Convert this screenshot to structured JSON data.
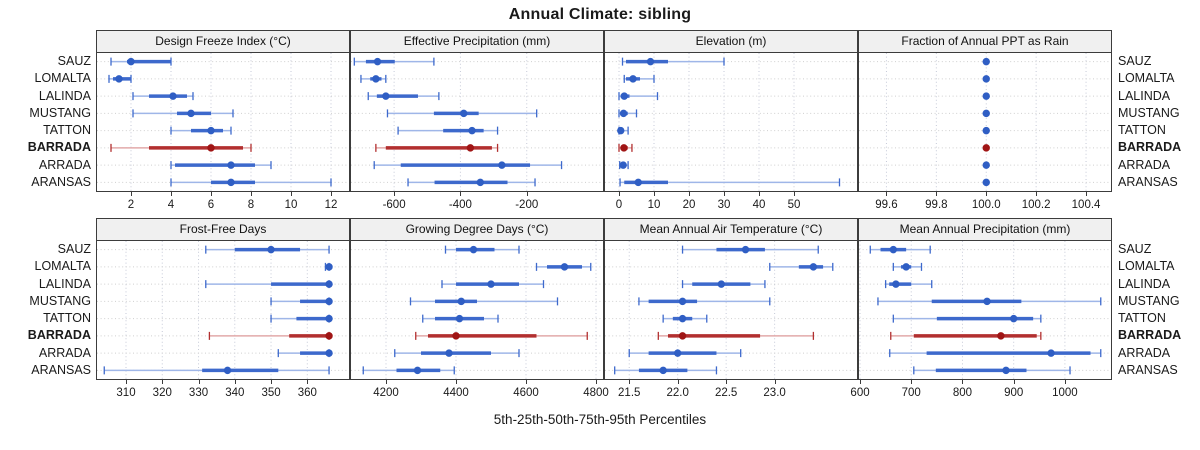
{
  "title": "Annual Climate: sibling",
  "caption": "5th-25th-50th-75th-95th Percentiles",
  "sites": [
    "SAUZ",
    "LOMALTA",
    "LALINDA",
    "MUSTANG",
    "TATTON",
    "BARRADA",
    "ARRADA",
    "ARANSAS"
  ],
  "highlight_site": "BARRADA",
  "colors": {
    "dot_blue": "#2f5ec4",
    "mid_blue": "#3d69cc",
    "range_blue": "#9fb6e8",
    "dot_red": "#a01515",
    "mid_red": "#b22f2f",
    "range_red": "#e2aaaa",
    "grid_vertical": "#c6cad8",
    "grid_horizontal": "#cfcfcf",
    "panel_border": "#3c3c3c",
    "header_bg": "#f0f0f0"
  },
  "chart_data": {
    "type": "dotplot-percentile-intervals",
    "percentiles": [
      5,
      25,
      50,
      75,
      95
    ],
    "legend_note": "dot = median, thick bar = 25th-75th, thin bar with caps = 5th-95th; BARRADA highlighted in red",
    "panels": [
      {
        "title": "Design Freeze Index (°C)",
        "row": 0,
        "col": 0,
        "xlim": [
          0.3,
          12.9
        ],
        "ticks": [
          2,
          4,
          6,
          8,
          10,
          12
        ],
        "tick_labels": [
          "2",
          "4",
          "6",
          "8",
          "10",
          "12"
        ],
        "values": [
          [
            1,
            1.8,
            2,
            4,
            4
          ],
          [
            0.9,
            1.1,
            1.4,
            2,
            2
          ],
          [
            2.1,
            2.9,
            4.1,
            4.8,
            5.1
          ],
          [
            2.1,
            4.3,
            5,
            6,
            7.1
          ],
          [
            4,
            5,
            6,
            6.6,
            7
          ],
          [
            1,
            2.9,
            6,
            7.6,
            8
          ],
          [
            4,
            4.2,
            7,
            8.2,
            9
          ],
          [
            4,
            6,
            7,
            8.2,
            12
          ]
        ]
      },
      {
        "title": "Effective Precipitation (mm)",
        "row": 0,
        "col": 1,
        "xlim": [
          -730,
          30
        ],
        "ticks": [
          -600,
          -400,
          -200
        ],
        "tick_labels": [
          "-600",
          "-400",
          "-200"
        ],
        "values": [
          [
            -720,
            -685,
            -650,
            -598,
            -480
          ],
          [
            -700,
            -672,
            -655,
            -638,
            -625
          ],
          [
            -678,
            -652,
            -625,
            -528,
            -465
          ],
          [
            -620,
            -480,
            -390,
            -345,
            -170
          ],
          [
            -588,
            -452,
            -365,
            -330,
            -288
          ],
          [
            -655,
            -625,
            -370,
            -305,
            -288
          ],
          [
            -660,
            -580,
            -275,
            -190,
            -95
          ],
          [
            -558,
            -478,
            -340,
            -258,
            -175
          ]
        ]
      },
      {
        "title": "Elevation (m)",
        "row": 0,
        "col": 2,
        "xlim": [
          -4,
          68
        ],
        "ticks": [
          0,
          10,
          20,
          30,
          40,
          50
        ],
        "tick_labels": [
          "0",
          "10",
          "20",
          "30",
          "40",
          "50"
        ],
        "values": [
          [
            1,
            2,
            9,
            14,
            30
          ],
          [
            1.5,
            2,
            4,
            6,
            10
          ],
          [
            0,
            0.5,
            1.5,
            3,
            11
          ],
          [
            0,
            0.5,
            1.3,
            2.5,
            5
          ],
          [
            0,
            0.1,
            0.5,
            1.3,
            2.6
          ],
          [
            0,
            0.6,
            1.4,
            2.5,
            3.7
          ],
          [
            0.2,
            0.7,
            1.2,
            1.8,
            2.6
          ],
          [
            0.3,
            1.5,
            5.5,
            14,
            63
          ]
        ]
      },
      {
        "title": "Fraction of Annual PPT as Rain",
        "row": 0,
        "col": 3,
        "xlim": [
          99.49,
          100.5
        ],
        "ticks": [
          99.6,
          99.8,
          100.0,
          100.2,
          100.4
        ],
        "tick_labels": [
          "99.6",
          "99.8",
          "100.0",
          "100.2",
          "100.4"
        ],
        "values": [
          [
            100,
            100,
            100,
            100,
            100
          ],
          [
            100,
            100,
            100,
            100,
            100
          ],
          [
            100,
            100,
            100,
            100,
            100
          ],
          [
            100,
            100,
            100,
            100,
            100
          ],
          [
            100,
            100,
            100,
            100,
            100
          ],
          [
            100,
            100,
            100,
            100,
            100
          ],
          [
            100,
            100,
            100,
            100,
            100
          ],
          [
            100,
            100,
            100,
            100,
            100
          ]
        ]
      },
      {
        "title": "Frost-Free Days",
        "row": 1,
        "col": 0,
        "xlim": [
          302,
          371.5
        ],
        "ticks": [
          310,
          320,
          330,
          340,
          350,
          360
        ],
        "tick_labels": [
          "310",
          "320",
          "330",
          "340",
          "350",
          "360"
        ],
        "values": [
          [
            332,
            340,
            350,
            358,
            366
          ],
          [
            365,
            366,
            366,
            366,
            366
          ],
          [
            332,
            350,
            366,
            366,
            366
          ],
          [
            350,
            358,
            366,
            366,
            366
          ],
          [
            350,
            357,
            366,
            366,
            366
          ],
          [
            333,
            355,
            366,
            366,
            366
          ],
          [
            352,
            358,
            366,
            366,
            366
          ],
          [
            304,
            331,
            338,
            352,
            366
          ]
        ]
      },
      {
        "title": "Growing Degree Days (°C)",
        "row": 1,
        "col": 1,
        "xlim": [
          4100,
          4820
        ],
        "ticks": [
          4200,
          4400,
          4600,
          4800
        ],
        "tick_labels": [
          "4200",
          "4400",
          "4600",
          "4800"
        ],
        "values": [
          [
            4370,
            4400,
            4450,
            4510,
            4580
          ],
          [
            4630,
            4660,
            4710,
            4760,
            4785
          ],
          [
            4360,
            4400,
            4500,
            4580,
            4650
          ],
          [
            4270,
            4340,
            4415,
            4460,
            4690
          ],
          [
            4305,
            4340,
            4410,
            4480,
            4520
          ],
          [
            4285,
            4320,
            4400,
            4630,
            4775
          ],
          [
            4225,
            4300,
            4380,
            4500,
            4580
          ],
          [
            4135,
            4230,
            4290,
            4355,
            4395
          ]
        ]
      },
      {
        "title": "Mean Annual Air Temperature (°C)",
        "row": 1,
        "col": 2,
        "xlim": [
          21.25,
          23.85
        ],
        "ticks": [
          21.5,
          22.0,
          22.5,
          23.0
        ],
        "tick_labels": [
          "21.5",
          "22.0",
          "22.5",
          "23.0"
        ],
        "values": [
          [
            22.05,
            22.4,
            22.7,
            22.9,
            23.45
          ],
          [
            22.95,
            23.25,
            23.4,
            23.5,
            23.6
          ],
          [
            22.05,
            22.15,
            22.45,
            22.75,
            22.9
          ],
          [
            21.6,
            21.7,
            22.05,
            22.2,
            22.95
          ],
          [
            21.85,
            21.95,
            22.05,
            22.15,
            22.3
          ],
          [
            21.8,
            21.9,
            22.05,
            22.85,
            23.4
          ],
          [
            21.5,
            21.7,
            22.0,
            22.4,
            22.65
          ],
          [
            21.35,
            21.6,
            21.85,
            22.1,
            22.4
          ]
        ]
      },
      {
        "title": "Mean Annual Precipitation (mm)",
        "row": 1,
        "col": 3,
        "xlim": [
          598,
          1090
        ],
        "ticks": [
          600,
          700,
          800,
          900,
          1000
        ],
        "tick_labels": [
          "600",
          "700",
          "800",
          "900",
          "1000"
        ],
        "values": [
          [
            620,
            640,
            665,
            690,
            737
          ],
          [
            665,
            680,
            690,
            700,
            720
          ],
          [
            650,
            657,
            670,
            700,
            740
          ],
          [
            635,
            740,
            848,
            915,
            1070
          ],
          [
            665,
            750,
            900,
            938,
            953
          ],
          [
            660,
            705,
            875,
            945,
            953
          ],
          [
            658,
            730,
            973,
            1050,
            1070
          ],
          [
            705,
            748,
            885,
            925,
            1010
          ]
        ]
      }
    ]
  }
}
